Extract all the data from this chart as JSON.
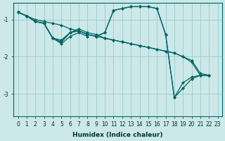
{
  "xlabel": "Humidex (Indice chaleur)",
  "background_color": "#cce8e8",
  "grid_color": "#99cccc",
  "line_color": "#006666",
  "xlim": [
    -0.5,
    23.5
  ],
  "ylim": [
    -3.6,
    -0.55
  ],
  "yticks": [
    -3,
    -2,
    -1
  ],
  "xticks": [
    0,
    1,
    2,
    3,
    4,
    5,
    6,
    7,
    8,
    9,
    10,
    11,
    12,
    13,
    14,
    15,
    16,
    17,
    18,
    19,
    20,
    21,
    22,
    23
  ],
  "series": [
    {
      "x": [
        0,
        1,
        2,
        3,
        4,
        5,
        6,
        7,
        8,
        9,
        10,
        11,
        12,
        13,
        14,
        15,
        16,
        17,
        18,
        19,
        20,
        21,
        22
      ],
      "y": [
        -0.8,
        -0.9,
        -1.0,
        -1.05,
        -1.1,
        -1.15,
        -1.25,
        -1.3,
        -1.4,
        -1.45,
        -1.5,
        -1.55,
        -1.6,
        -1.65,
        -1.7,
        -1.75,
        -1.8,
        -1.85,
        -1.9,
        -2.0,
        -2.1,
        -2.45,
        -2.5
      ]
    },
    {
      "x": [
        0,
        1,
        2,
        3,
        4,
        5,
        6,
        7,
        8,
        9,
        10,
        11,
        12,
        13,
        14,
        15,
        16,
        17,
        18,
        19,
        20,
        21,
        22
      ],
      "y": [
        -0.8,
        -0.9,
        -1.05,
        -1.1,
        -1.5,
        -1.55,
        -1.35,
        -1.3,
        -1.4,
        -1.45,
        -1.35,
        -0.75,
        -0.7,
        -0.65,
        -0.65,
        -0.65,
        -0.7,
        -1.4,
        -3.1,
        -2.7,
        -2.55,
        -2.5,
        -2.5
      ]
    },
    {
      "x": [
        0,
        1,
        2,
        3,
        4,
        5,
        6,
        7,
        8,
        9,
        10,
        11,
        12,
        13,
        14,
        15,
        16,
        17,
        18,
        19,
        20,
        21,
        22
      ],
      "y": [
        -0.8,
        -0.9,
        -1.05,
        -1.1,
        -1.5,
        -1.6,
        -1.35,
        -1.3,
        -1.4,
        -1.45,
        -1.35,
        -0.75,
        -0.7,
        -0.65,
        -0.65,
        -0.65,
        -0.7,
        -1.4,
        -3.1,
        -2.85,
        -2.6,
        -2.5,
        -2.5
      ]
    },
    {
      "x": [
        0,
        1,
        2,
        3,
        4,
        5,
        6,
        7,
        8,
        9,
        10,
        11,
        12,
        13,
        14,
        15,
        16,
        17,
        18,
        19,
        20,
        21,
        22
      ],
      "y": [
        -0.8,
        -0.9,
        -1.05,
        -1.1,
        -1.5,
        -1.6,
        -1.35,
        -1.25,
        -1.35,
        -1.4,
        -1.5,
        -1.55,
        -1.6,
        -1.65,
        -1.7,
        -1.75,
        -1.8,
        -1.85,
        -1.9,
        -2.0,
        -2.15,
        -2.5,
        -2.5
      ]
    },
    {
      "x": [
        0,
        1,
        2,
        3,
        4,
        5,
        6,
        7,
        8
      ],
      "y": [
        -0.8,
        -0.9,
        -1.05,
        -1.1,
        -1.5,
        -1.65,
        -1.45,
        -1.35,
        -1.45
      ]
    }
  ]
}
